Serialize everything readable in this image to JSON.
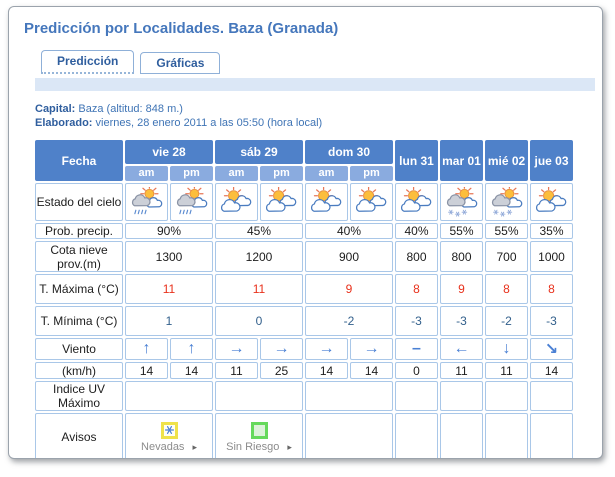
{
  "page": {
    "title": "Predicción por Localidades. Baza (Granada)"
  },
  "tabs": [
    {
      "label": "Predicción"
    },
    {
      "label": "Gráficas"
    }
  ],
  "meta": {
    "capital_label": "Capital:",
    "capital_value": "Baza (altitud: 848 m.)",
    "elaborado_label": "Elaborado:",
    "elaborado_value": "viernes, 28 enero 2011 a las 05:50 (hora local)"
  },
  "table": {
    "fecha_label": "Fecha",
    "am_label": "am",
    "pm_label": "pm",
    "days": [
      {
        "label": "vie 28"
      },
      {
        "label": "sáb 29"
      },
      {
        "label": "dom 30"
      },
      {
        "label": "lun 31"
      },
      {
        "label": "mar 01"
      },
      {
        "label": "mié 02"
      },
      {
        "label": "jue 03"
      }
    ],
    "rows": {
      "estado_label": "Estado del cielo",
      "sky_icons": [
        "cloud-sun-rain",
        "cloud-sun-rain",
        "sun-cloud",
        "sun-cloud",
        "sun-cloud",
        "sun-cloud",
        "sun-cloud",
        "cloud-sun-snow",
        "cloud-sun-snow",
        "sun-cloud"
      ],
      "prob_label": "Prob. precip.",
      "prob_values": [
        "90%",
        "45%",
        "40%",
        "40%",
        "55%",
        "55%",
        "35%"
      ],
      "cota_label": "Cota nieve prov.(m)",
      "cota_values": [
        "1300",
        "1200",
        "900",
        "800",
        "800",
        "700",
        "1000"
      ],
      "tmax_label": "T. Máxima (°C)",
      "tmax_values": [
        "11",
        "11",
        "9",
        "8",
        "9",
        "8",
        "8"
      ],
      "tmin_label": "T. Mínima (°C)",
      "tmin_values": [
        "1",
        "0",
        "-2",
        "-3",
        "-3",
        "-2",
        "-3"
      ],
      "viento_label": "Viento",
      "wind_dirs": [
        "up",
        "up",
        "right",
        "right",
        "right",
        "right",
        "calm",
        "left",
        "down",
        "down-right"
      ],
      "kmh_label": "(km/h)",
      "kmh_values": [
        "14",
        "14",
        "11",
        "25",
        "14",
        "14",
        "0",
        "11",
        "11",
        "14"
      ],
      "uv_label": "Indice UV Máximo",
      "avisos_label": "Avisos",
      "avisos": [
        {
          "type": "nevadas",
          "label": "Nevadas",
          "icon": "snowflake-icon"
        },
        {
          "type": "sin-riesgo",
          "label": "Sin Riesgo",
          "icon": "no-risk-square-icon"
        }
      ],
      "caret": "▸"
    }
  },
  "colors": {
    "header_blue": "#4f81c9",
    "subheader_blue": "#8aabdf",
    "cell_border": "#a9c7e8",
    "band_blue": "#dbe7f6",
    "title_blue": "#4577bc",
    "tmax_red": "#e8311c",
    "tmin_blue": "#33608c",
    "wind_blue": "#4a80d4",
    "aviso_yellow": "#efe24a",
    "aviso_green": "#66d95c"
  }
}
